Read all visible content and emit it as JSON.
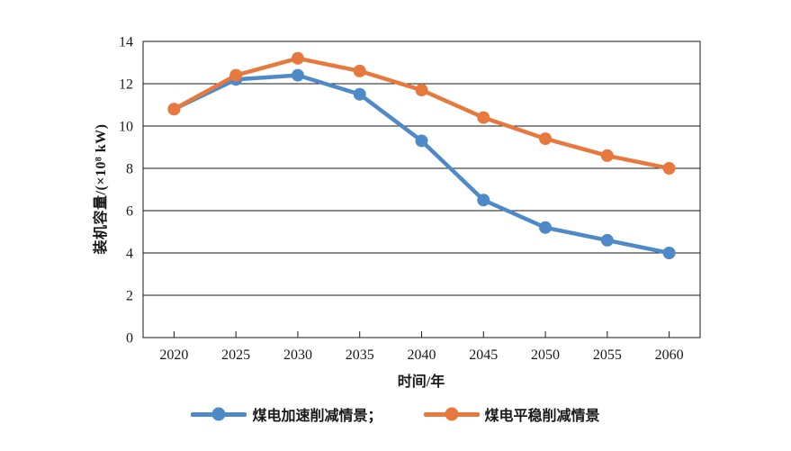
{
  "chart_data": {
    "type": "line",
    "title": "",
    "xlabel": "时间/年",
    "ylabel": "装机容量/(×10⁸ kW)",
    "categories": [
      "2020",
      "2025",
      "2030",
      "2035",
      "2040",
      "2045",
      "2050",
      "2055",
      "2060"
    ],
    "series": [
      {
        "name": "煤电加速削减情景",
        "legend_label": "煤电加速削减情景；",
        "color": "#4E8AC8",
        "values": [
          10.8,
          12.2,
          12.4,
          11.5,
          9.3,
          6.5,
          5.2,
          4.6,
          4.0
        ]
      },
      {
        "name": "煤电平稳削减情景",
        "legend_label": "煤电平稳削减情景",
        "color": "#E8793E",
        "values": [
          10.8,
          12.4,
          13.2,
          12.6,
          11.7,
          10.4,
          9.4,
          8.6,
          8.0
        ]
      }
    ],
    "ylim": [
      0,
      14
    ],
    "ytick_step": 2,
    "yticks": [
      "0",
      "2",
      "4",
      "6",
      "8",
      "10",
      "12",
      "14"
    ],
    "grid": true,
    "legend_position": "bottom",
    "axis_color": "#1a1a1a",
    "background": "#ffffff"
  }
}
